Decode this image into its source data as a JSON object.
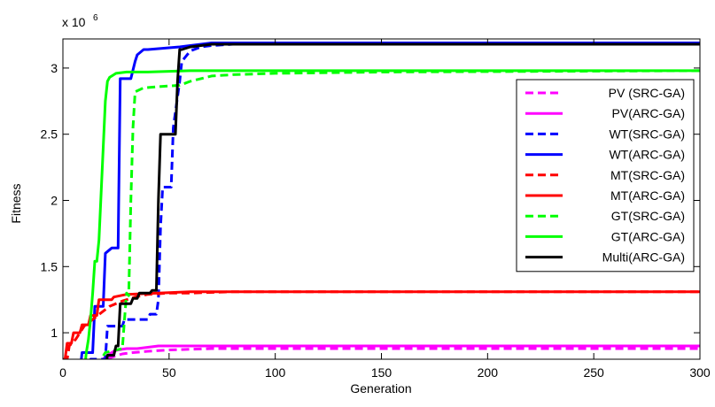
{
  "chart_data": {
    "type": "line",
    "title": "",
    "xlabel": "Generation",
    "ylabel": "Fitness",
    "exponent_label": {
      "base": "x 10",
      "power": "6"
    },
    "xlim": [
      0,
      300
    ],
    "ylim": [
      0.8,
      3.22
    ],
    "x_ticks": [
      0,
      50,
      100,
      150,
      200,
      250,
      300
    ],
    "y_ticks": [
      1,
      1.5,
      2,
      2.5,
      3
    ],
    "y_tick_labels": [
      "1",
      "1.5",
      "2",
      "2.5",
      "3"
    ],
    "grid": false,
    "legend_position": "right",
    "series": [
      {
        "name": "PV (SRC-GA)",
        "color": "#ff00ff",
        "dash": "dashed",
        "x": [
          0,
          12,
          14,
          16,
          18,
          20,
          24,
          28,
          33,
          40,
          50,
          70,
          300
        ],
        "y": [
          0.7,
          0.7,
          0.72,
          0.75,
          0.78,
          0.8,
          0.82,
          0.84,
          0.85,
          0.86,
          0.87,
          0.88,
          0.88
        ]
      },
      {
        "name": "PV(ARC-GA)",
        "color": "#ff00ff",
        "dash": "solid",
        "x": [
          0,
          16,
          18,
          20,
          22,
          24,
          26,
          30,
          35,
          40,
          45,
          55,
          300
        ],
        "y": [
          0.7,
          0.7,
          0.78,
          0.82,
          0.84,
          0.86,
          0.87,
          0.88,
          0.88,
          0.89,
          0.9,
          0.9,
          0.9
        ]
      },
      {
        "name": "WT(SRC-GA)",
        "color": "#0000ff",
        "dash": "dashed",
        "x": [
          0,
          12,
          13,
          20,
          21,
          28,
          29,
          40,
          41,
          44,
          45,
          46,
          47,
          51,
          52,
          55,
          56,
          60,
          65,
          70,
          80,
          300
        ],
        "y": [
          0.7,
          0.7,
          0.8,
          0.8,
          1.05,
          1.05,
          1.1,
          1.1,
          1.14,
          1.14,
          1.25,
          1.8,
          2.1,
          2.1,
          2.55,
          2.9,
          3.05,
          3.13,
          3.16,
          3.17,
          3.18,
          3.18
        ]
      },
      {
        "name": "WT(ARC-GA)",
        "color": "#0000ff",
        "dash": "solid",
        "x": [
          0,
          8,
          9,
          14,
          15,
          19,
          20,
          23,
          26,
          27,
          32,
          34,
          35,
          38,
          40,
          55,
          60,
          65,
          70,
          300
        ],
        "y": [
          0.7,
          0.7,
          0.85,
          0.85,
          1.2,
          1.2,
          1.6,
          1.64,
          1.64,
          2.92,
          2.92,
          3.05,
          3.1,
          3.14,
          3.14,
          3.16,
          3.17,
          3.18,
          3.19,
          3.19
        ]
      },
      {
        "name": "MT(SRC-GA)",
        "color": "#ff0000",
        "dash": "dashed",
        "x": [
          0,
          2,
          3,
          6,
          8,
          10,
          14,
          18,
          22,
          28,
          34,
          40,
          50,
          60,
          80,
          300
        ],
        "y": [
          0.8,
          0.8,
          0.9,
          0.95,
          1.0,
          1.05,
          1.1,
          1.15,
          1.2,
          1.24,
          1.27,
          1.29,
          1.3,
          1.3,
          1.31,
          1.31
        ]
      },
      {
        "name": "MT(ARC-GA)",
        "color": "#ff0000",
        "dash": "solid",
        "x": [
          0,
          1,
          2,
          4,
          5,
          8,
          9,
          12,
          13,
          16,
          17,
          23,
          24,
          30,
          45,
          60,
          300
        ],
        "y": [
          0.8,
          0.8,
          0.92,
          0.92,
          1.0,
          1.0,
          1.06,
          1.06,
          1.13,
          1.13,
          1.25,
          1.25,
          1.27,
          1.29,
          1.3,
          1.31,
          1.31
        ]
      },
      {
        "name": "GT(SRC-GA)",
        "color": "#00ff00",
        "dash": "dashed",
        "x": [
          0,
          14,
          20,
          28,
          29,
          30,
          31,
          32,
          33,
          34,
          38,
          45,
          55,
          60,
          70,
          80,
          100,
          150,
          300
        ],
        "y": [
          0.7,
          0.7,
          0.85,
          0.88,
          1.1,
          1.3,
          1.28,
          2.0,
          2.55,
          2.82,
          2.85,
          2.86,
          2.87,
          2.9,
          2.94,
          2.95,
          2.96,
          2.97,
          2.98
        ]
      },
      {
        "name": "GT(ARC-GA)",
        "color": "#00ff00",
        "dash": "solid",
        "x": [
          0,
          10,
          11,
          12,
          13,
          14,
          15,
          16,
          17,
          18,
          19,
          20,
          21,
          22,
          25,
          30,
          40,
          60,
          100,
          300
        ],
        "y": [
          0.7,
          0.7,
          0.85,
          0.95,
          1.1,
          1.3,
          1.54,
          1.54,
          1.7,
          2.05,
          2.4,
          2.75,
          2.9,
          2.93,
          2.96,
          2.97,
          2.97,
          2.98,
          2.98,
          2.98
        ]
      },
      {
        "name": "Multi(ARC-GA)",
        "color": "#000000",
        "dash": "solid",
        "x": [
          0,
          20,
          21,
          24,
          25,
          26,
          27,
          32,
          33,
          35,
          36,
          41,
          42,
          44,
          45,
          46,
          50,
          53,
          54,
          55,
          56,
          60,
          70,
          300
        ],
        "y": [
          0.7,
          0.7,
          0.83,
          0.83,
          0.9,
          0.9,
          1.22,
          1.22,
          1.26,
          1.26,
          1.3,
          1.3,
          1.32,
          1.32,
          2.0,
          2.5,
          2.5,
          2.5,
          2.9,
          3.14,
          3.14,
          3.16,
          3.18,
          3.18
        ]
      }
    ]
  }
}
